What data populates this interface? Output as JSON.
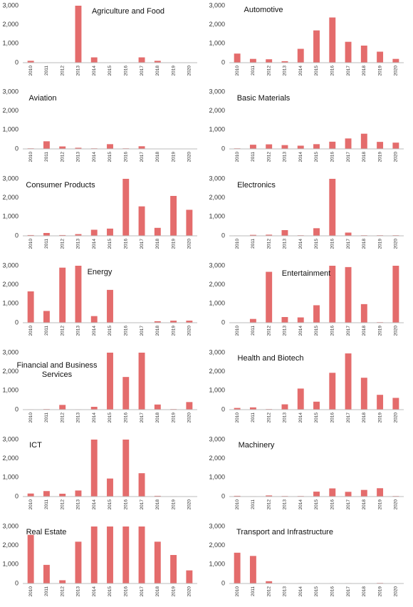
{
  "chart_data": [
    {
      "type": "bar",
      "title": "Agriculture and Food",
      "categories": [
        "2010",
        "2011",
        "2012",
        "2013",
        "2014",
        "2015",
        "2016",
        "2017",
        "2018",
        "2019",
        "2020"
      ],
      "values": [
        100,
        0,
        0,
        3000,
        280,
        0,
        0,
        280,
        100,
        0,
        0
      ],
      "color": "#e46c6c",
      "ylim": [
        0,
        3000
      ],
      "yticks": [
        0,
        {
          "value": 1000,
          "label": "1,000"
        },
        {
          "value": 2000,
          "label": "2,000"
        },
        {
          "value": 3000,
          "label": "3,000"
        }
      ]
    },
    {
      "type": "bar",
      "title": "Automotive",
      "categories": [
        "2010",
        "2011",
        "2012",
        "2013",
        "2014",
        "2015",
        "2016",
        "2017",
        "2018",
        "2019",
        "2020"
      ],
      "values": [
        480,
        200,
        180,
        80,
        730,
        1700,
        2380,
        1100,
        900,
        580,
        200
      ],
      "color": "#e46c6c",
      "ylim": [
        0,
        3000
      ],
      "yticks": [
        0,
        {
          "value": 1000,
          "label": "1,000"
        },
        {
          "value": 2000,
          "label": "2,000"
        },
        {
          "value": 3000,
          "label": "3,000"
        }
      ]
    },
    {
      "type": "bar",
      "title": "Aviation",
      "categories": [
        "2010",
        "2011",
        "2012",
        "2013",
        "2014",
        "2015",
        "2016",
        "2017",
        "2018",
        "2019",
        "2020"
      ],
      "values": [
        30,
        400,
        130,
        60,
        30,
        250,
        30,
        140,
        0,
        0,
        0
      ],
      "color": "#e46c6c",
      "ylim": [
        0,
        3000
      ],
      "yticks": [
        0,
        {
          "value": 1000,
          "label": "1,000"
        },
        {
          "value": 2000,
          "label": "2,000"
        },
        {
          "value": 3000,
          "label": "3,000"
        }
      ]
    },
    {
      "type": "bar",
      "title": "Basic Materials",
      "categories": [
        "2010",
        "2011",
        "2012",
        "2013",
        "2014",
        "2015",
        "2016",
        "2017",
        "2018",
        "2019",
        "2020"
      ],
      "values": [
        30,
        220,
        240,
        200,
        170,
        250,
        380,
        550,
        800,
        370,
        330
      ],
      "color": "#e46c6c",
      "ylim": [
        0,
        3000
      ],
      "yticks": [
        0,
        {
          "value": 1000,
          "label": "1,000"
        },
        {
          "value": 2000,
          "label": "2,000"
        },
        {
          "value": 3000,
          "label": "3,000"
        }
      ]
    },
    {
      "type": "bar",
      "title": "Consumer Products",
      "categories": [
        "2010",
        "2011",
        "2012",
        "2013",
        "2014",
        "2015",
        "2016",
        "2017",
        "2018",
        "2019",
        "2020"
      ],
      "values": [
        40,
        150,
        40,
        90,
        320,
        380,
        3000,
        1550,
        420,
        2100,
        1370
      ],
      "color": "#e46c6c",
      "ylim": [
        0,
        3000
      ],
      "yticks": [
        0,
        {
          "value": 1000,
          "label": "1,000"
        },
        {
          "value": 2000,
          "label": "2,000"
        },
        {
          "value": 3000,
          "label": "3,000"
        }
      ]
    },
    {
      "type": "bar",
      "title": "Electronics",
      "categories": [
        "2010",
        "2011",
        "2012",
        "2013",
        "2014",
        "2015",
        "2016",
        "2017",
        "2018",
        "2019",
        "2020"
      ],
      "values": [
        20,
        50,
        60,
        300,
        30,
        400,
        3000,
        170,
        30,
        30,
        30
      ],
      "color": "#e46c6c",
      "ylim": [
        0,
        3000
      ],
      "yticks": [
        0,
        {
          "value": 1000,
          "label": "1,000"
        },
        {
          "value": 2000,
          "label": "2,000"
        },
        {
          "value": 3000,
          "label": "3,000"
        }
      ]
    },
    {
      "type": "bar",
      "title": "Energy",
      "categories": [
        "2010",
        "2011",
        "2012",
        "2013",
        "2014",
        "2015",
        "2016",
        "2017",
        "2018",
        "2019",
        "2020"
      ],
      "values": [
        1650,
        620,
        2900,
        3000,
        350,
        1730,
        0,
        0,
        80,
        110,
        110
      ],
      "color": "#e46c6c",
      "ylim": [
        0,
        3000
      ],
      "yticks": [
        0,
        {
          "value": 1000,
          "label": "1,000"
        },
        {
          "value": 2000,
          "label": "2,000"
        },
        {
          "value": 3000,
          "label": "3,000"
        }
      ]
    },
    {
      "type": "bar",
      "title": "Entertainment",
      "categories": [
        "2010",
        "2011",
        "2012",
        "2013",
        "2014",
        "2015",
        "2016",
        "2017",
        "2018",
        "2019",
        "2020"
      ],
      "values": [
        10,
        200,
        2680,
        300,
        280,
        920,
        3000,
        2930,
        980,
        30,
        3000
      ],
      "color": "#e46c6c",
      "ylim": [
        0,
        3000
      ],
      "yticks": [
        0,
        {
          "value": 1000,
          "label": "1,000"
        },
        {
          "value": 2000,
          "label": "2,000"
        },
        {
          "value": 3000,
          "label": "3,000"
        }
      ]
    },
    {
      "type": "bar",
      "title": "Financial and Business Services",
      "categories": [
        "2010",
        "2011",
        "2012",
        "2013",
        "2014",
        "2015",
        "2016",
        "2017",
        "2018",
        "2019",
        "2020"
      ],
      "values": [
        20,
        30,
        250,
        20,
        150,
        3000,
        1720,
        3000,
        270,
        30,
        400
      ],
      "color": "#e46c6c",
      "ylim": [
        0,
        3000
      ],
      "yticks": [
        0,
        {
          "value": 1000,
          "label": "1,000"
        },
        {
          "value": 2000,
          "label": "2,000"
        },
        {
          "value": 3000,
          "label": "3,000"
        }
      ]
    },
    {
      "type": "bar",
      "title": "Health and Biotech",
      "categories": [
        "2010",
        "2011",
        "2012",
        "2013",
        "2014",
        "2015",
        "2016",
        "2017",
        "2018",
        "2019",
        "2020"
      ],
      "values": [
        90,
        120,
        30,
        280,
        1110,
        420,
        1940,
        2960,
        1680,
        780,
        620
      ],
      "color": "#e46c6c",
      "ylim": [
        0,
        3000
      ],
      "yticks": [
        0,
        {
          "value": 1000,
          "label": "1,000"
        },
        {
          "value": 2000,
          "label": "2,000"
        },
        {
          "value": 3000,
          "label": "3,000"
        }
      ]
    },
    {
      "type": "bar",
      "title": "ICT",
      "categories": [
        "2010",
        "2011",
        "2012",
        "2013",
        "2014",
        "2015",
        "2016",
        "2017",
        "2018",
        "2019",
        "2020"
      ],
      "values": [
        160,
        290,
        150,
        320,
        3000,
        950,
        3000,
        1230,
        40,
        20,
        10
      ],
      "color": "#e46c6c",
      "ylim": [
        0,
        3000
      ],
      "yticks": [
        0,
        {
          "value": 1000,
          "label": "1,000"
        },
        {
          "value": 2000,
          "label": "2,000"
        },
        {
          "value": 3000,
          "label": "3,000"
        }
      ]
    },
    {
      "type": "bar",
      "title": "Machinery",
      "categories": [
        "2010",
        "2011",
        "2012",
        "2013",
        "2014",
        "2015",
        "2016",
        "2017",
        "2018",
        "2019",
        "2020"
      ],
      "values": [
        40,
        20,
        60,
        30,
        30,
        260,
        430,
        250,
        350,
        440,
        30
      ],
      "color": "#e46c6c",
      "ylim": [
        0,
        3000
      ],
      "yticks": [
        0,
        {
          "value": 1000,
          "label": "1,000"
        },
        {
          "value": 2000,
          "label": "2,000"
        },
        {
          "value": 3000,
          "label": "3,000"
        }
      ]
    },
    {
      "type": "bar",
      "title": "Real Estate",
      "categories": [
        "2010",
        "2011",
        "2012",
        "2013",
        "2014",
        "2015",
        "2016",
        "2017",
        "2018",
        "2019",
        "2020"
      ],
      "values": [
        2560,
        980,
        170,
        2200,
        3000,
        3000,
        3000,
        3000,
        2200,
        1500,
        690
      ],
      "color": "#e46c6c",
      "ylim": [
        0,
        3000
      ],
      "yticks": [
        0,
        {
          "value": 1000,
          "label": "1,000"
        },
        {
          "value": 2000,
          "label": "2,000"
        },
        {
          "value": 3000,
          "label": "3,000"
        }
      ]
    },
    {
      "type": "bar",
      "title": "Transport and Infrastructure",
      "categories": [
        "2010",
        "2011",
        "2012",
        "2013",
        "2014",
        "2015",
        "2016",
        "2017",
        "2018",
        "2019",
        "2020"
      ],
      "values": [
        1620,
        1450,
        120,
        20,
        20,
        20,
        20,
        20,
        10,
        30,
        10
      ],
      "color": "#e46c6c",
      "ylim": [
        0,
        3000
      ],
      "yticks": [
        0,
        {
          "value": 1000,
          "label": "1,000"
        },
        {
          "value": 2000,
          "label": "2,000"
        },
        {
          "value": 3000,
          "label": "3,000"
        }
      ]
    }
  ]
}
